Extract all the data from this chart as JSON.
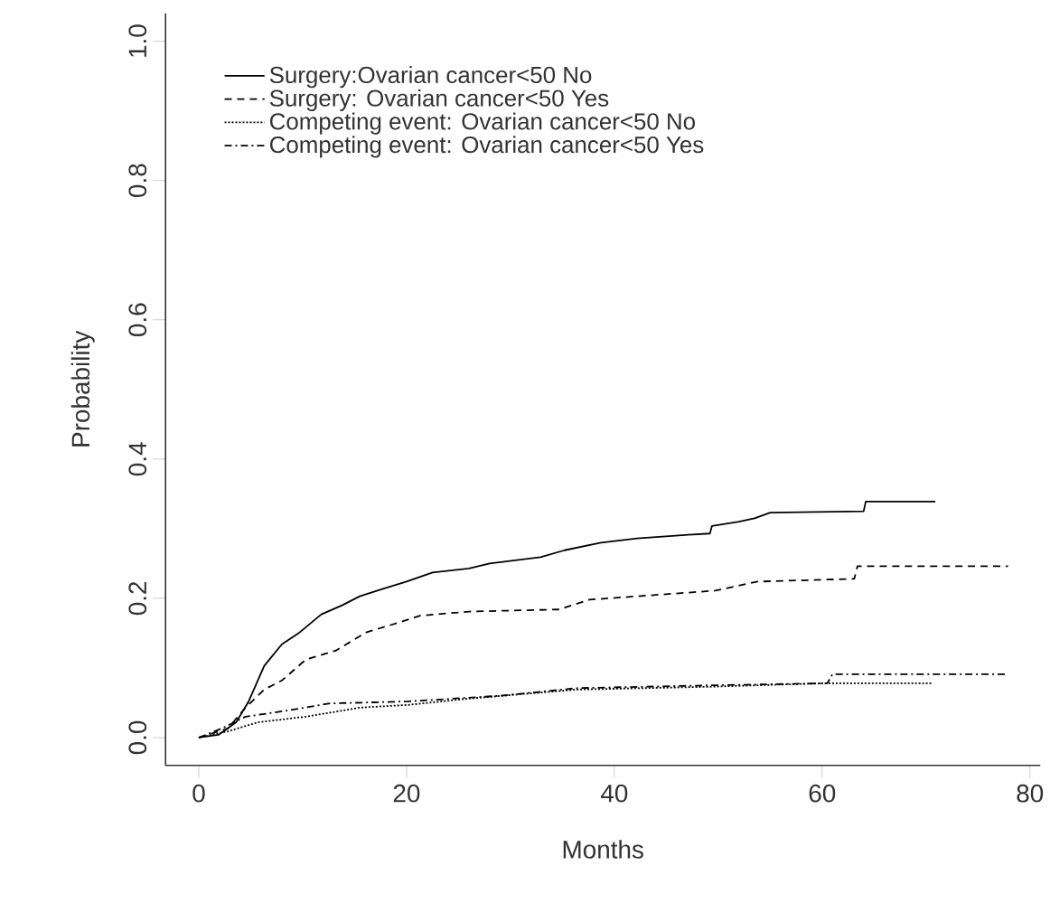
{
  "chart_data": {
    "type": "line",
    "xlabel": "Months",
    "ylabel": "Probability",
    "xlim": [
      -3.2,
      81
    ],
    "ylim": [
      -0.04,
      1.04
    ],
    "xticks": [
      0,
      20,
      40,
      60,
      80
    ],
    "yticks": [
      {
        "value": 0,
        "label": "0.0"
      },
      {
        "value": 0.2,
        "label": "0.2"
      },
      {
        "value": 0.4,
        "label": "0.4"
      },
      {
        "value": 0.6,
        "label": "0.6"
      },
      {
        "value": 0.8,
        "label": "0.8"
      },
      {
        "value": 1.0,
        "label": "1.0"
      }
    ],
    "legend": "top left",
    "grid": false,
    "marker": "none",
    "series": [
      {
        "name": "Surgery:Ovarian cancer<50 No",
        "color": "#000000",
        "line_style": "solid",
        "x": [
          0,
          1.9,
          3.6,
          4.8,
          6.3,
          8.0,
          9.7,
          11.8,
          13.8,
          15.5,
          17.6,
          20,
          22.5,
          26,
          28,
          32.9,
          35.2,
          38.7,
          42.2,
          46.8,
          49.2,
          49.4,
          52,
          53.5,
          55,
          64,
          64.2,
          70.9
        ],
        "values": [
          0,
          0.004,
          0.022,
          0.052,
          0.103,
          0.134,
          0.151,
          0.177,
          0.19,
          0.203,
          0.213,
          0.224,
          0.237,
          0.243,
          0.25,
          0.259,
          0.269,
          0.28,
          0.286,
          0.291,
          0.293,
          0.304,
          0.31,
          0.315,
          0.323,
          0.325,
          0.339,
          0.339
        ]
      },
      {
        "name": "Surgery: Ovarian cancer<50 Yes",
        "color": "#000000",
        "line_style": "dashed",
        "x": [
          0,
          2.8,
          4.5,
          6.3,
          8.0,
          10.3,
          13.2,
          16.1,
          19.0,
          21.3,
          26,
          34.7,
          37.6,
          49.7,
          53.8,
          63.1,
          63.4,
          77.9
        ],
        "values": [
          0,
          0.013,
          0.043,
          0.069,
          0.082,
          0.112,
          0.125,
          0.151,
          0.164,
          0.175,
          0.181,
          0.184,
          0.198,
          0.211,
          0.224,
          0.228,
          0.246,
          0.246
        ]
      },
      {
        "name": "Competing event: Ovarian cancer<50 No",
        "color": "#000000",
        "line_style": "dotted",
        "x": [
          0,
          2.8,
          5.7,
          10.3,
          15.5,
          20.2,
          26,
          36.4,
          49.2,
          60.2,
          70.6
        ],
        "values": [
          0,
          0.009,
          0.022,
          0.03,
          0.043,
          0.047,
          0.056,
          0.069,
          0.073,
          0.078,
          0.078
        ]
      },
      {
        "name": "Competing event: Ovarian cancer<50 Yes",
        "color": "#000000",
        "line_style": "dashdot",
        "x": [
          0,
          2.2,
          4.5,
          8.6,
          12.6,
          20.2,
          28.9,
          36.4,
          49.2,
          60.5,
          61.0,
          77.9
        ],
        "values": [
          0,
          0.013,
          0.03,
          0.039,
          0.049,
          0.052,
          0.06,
          0.071,
          0.075,
          0.078,
          0.091,
          0.091
        ]
      }
    ]
  }
}
